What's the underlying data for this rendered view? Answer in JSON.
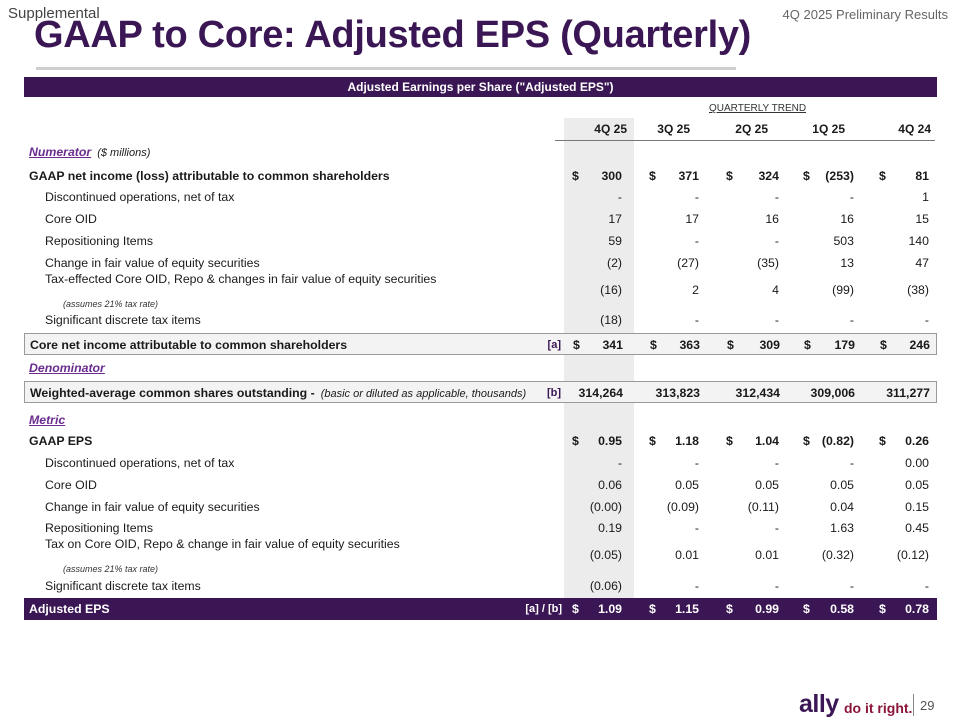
{
  "header": {
    "supplemental": "Supplemental",
    "right": "4Q 2025 Preliminary Results",
    "title": "GAAP to Core: Adjusted EPS (Quarterly)"
  },
  "table": {
    "band_title": "Adjusted Earnings per Share (\"Adjusted EPS\")",
    "trend_label": "QUARTERLY TREND",
    "columns": [
      "4Q 25",
      "3Q 25",
      "2Q 25",
      "1Q 25",
      "4Q 24"
    ],
    "numerator": {
      "heading": "Numerator",
      "sub": "($ millions)"
    },
    "numerator_rows": [
      {
        "label": "GAAP net income (loss) attributable to common shareholders",
        "values": [
          "300",
          "371",
          "324",
          "(253)",
          "81"
        ]
      },
      {
        "label": "Discontinued operations, net of tax",
        "values": [
          "-",
          "-",
          "-",
          "-",
          "1"
        ]
      },
      {
        "label": "Core OID",
        "values": [
          "17",
          "17",
          "16",
          "16",
          "15"
        ]
      },
      {
        "label": "Repositioning Items",
        "values": [
          "59",
          "-",
          "-",
          "503",
          "140"
        ]
      },
      {
        "label": "Change in fair value of equity securities",
        "values": [
          "(2)",
          "(27)",
          "(35)",
          "13",
          "47"
        ]
      },
      {
        "label": "Tax-effected Core OID, Repo & changes in fair value of equity securities",
        "note": "(assumes 21% tax rate)",
        "values": [
          "(16)",
          "2",
          "4",
          "(99)",
          "(38)"
        ]
      },
      {
        "label": "Significant discrete tax items",
        "values": [
          "(18)",
          "-",
          "-",
          "-",
          "-"
        ]
      }
    ],
    "core_net": {
      "label": "Core net income attributable to common shareholders",
      "ref": "[a]",
      "values": [
        "341",
        "363",
        "309",
        "179",
        "246"
      ]
    },
    "denominator": {
      "heading": "Denominator",
      "label": "Weighted-average common shares outstanding -",
      "sub": "(basic or diluted as applicable, thousands)",
      "ref": "[b]",
      "values": [
        "314,264",
        "313,823",
        "312,434",
        "309,006",
        "311,277"
      ]
    },
    "metric": {
      "heading": "Metric"
    },
    "metric_rows": [
      {
        "label": "GAAP EPS",
        "values": [
          "0.95",
          "1.18",
          "1.04",
          "(0.82)",
          "0.26"
        ]
      },
      {
        "label": "Discontinued operations, net of tax",
        "values": [
          "-",
          "-",
          "-",
          "-",
          "0.00"
        ]
      },
      {
        "label": "Core OID",
        "values": [
          "0.06",
          "0.05",
          "0.05",
          "0.05",
          "0.05"
        ]
      },
      {
        "label": "Change in fair value of equity securities",
        "values": [
          "(0.00)",
          "(0.09)",
          "(0.11)",
          "0.04",
          "0.15"
        ]
      },
      {
        "label": "Repositioning Items",
        "values": [
          "0.19",
          "-",
          "-",
          "1.63",
          "0.45"
        ]
      },
      {
        "label": "Tax on Core OID, Repo & change in fair value of equity securities",
        "note": "(assumes 21% tax rate)",
        "values": [
          "(0.05)",
          "0.01",
          "0.01",
          "(0.32)",
          "(0.12)"
        ]
      },
      {
        "label": "Significant discrete tax items",
        "values": [
          "(0.06)",
          "-",
          "-",
          "-",
          "-"
        ]
      }
    ],
    "adjusted": {
      "label": "Adjusted EPS",
      "ref": "[a] / [b]",
      "values": [
        "1.09",
        "1.15",
        "0.99",
        "0.58",
        "0.78"
      ]
    },
    "dollar_sign": "$"
  },
  "footer": {
    "logo": "ally",
    "slogan": "do it right.",
    "page": "29"
  }
}
